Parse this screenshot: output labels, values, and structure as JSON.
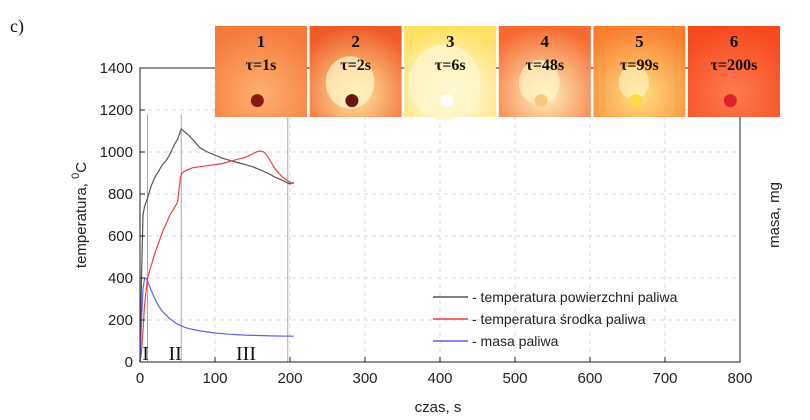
{
  "panel_label": "c)",
  "chart_data": {
    "type": "line",
    "xlabel": "czas, s",
    "ylabel_main": "temperatura, ",
    "ylabel_sup": "0",
    "ylabel_unit": "C",
    "y2label": "masa, mg",
    "xlim": [
      0,
      800
    ],
    "ylim": [
      0,
      1400
    ],
    "xticks": [
      0,
      100,
      200,
      300,
      400,
      500,
      600,
      700,
      800
    ],
    "yticks": [
      0,
      200,
      400,
      600,
      800,
      1000,
      1200,
      1400
    ],
    "grid": true,
    "legend_position": "bottom-right",
    "series": [
      {
        "name": "- temperatura powierzchni paliwa",
        "color": "#555555",
        "x": [
          0,
          2,
          4,
          6,
          10,
          15,
          20,
          25,
          30,
          35,
          40,
          45,
          50,
          52,
          55,
          58,
          60,
          65,
          70,
          75,
          80,
          90,
          100,
          110,
          120,
          130,
          140,
          150,
          160,
          170,
          180,
          190,
          195,
          200,
          205
        ],
        "y": [
          0,
          400,
          700,
          740,
          780,
          840,
          880,
          910,
          940,
          960,
          990,
          1030,
          1060,
          1080,
          1110,
          1100,
          1095,
          1080,
          1060,
          1040,
          1020,
          1000,
          985,
          970,
          960,
          950,
          940,
          930,
          915,
          900,
          880,
          865,
          855,
          848,
          855
        ]
      },
      {
        "name": "- temperatura środka paliwa",
        "color": "#f04040",
        "x": [
          0,
          2,
          4,
          6,
          10,
          15,
          20,
          25,
          30,
          35,
          40,
          45,
          50,
          52,
          54,
          56,
          60,
          70,
          80,
          90,
          100,
          110,
          120,
          130,
          140,
          150,
          155,
          160,
          165,
          170,
          175,
          180,
          190,
          200,
          205
        ],
        "y": [
          0,
          50,
          150,
          270,
          400,
          460,
          520,
          570,
          620,
          660,
          700,
          730,
          760,
          820,
          880,
          900,
          910,
          925,
          930,
          935,
          940,
          945,
          955,
          965,
          975,
          990,
          1000,
          1005,
          1000,
          980,
          950,
          920,
          880,
          855,
          850
        ]
      },
      {
        "name": "- masa paliwa",
        "color": "#6060ee",
        "x": [
          0,
          2,
          4,
          6,
          8,
          10,
          15,
          20,
          25,
          30,
          40,
          50,
          60,
          70,
          80,
          100,
          120,
          140,
          160,
          180,
          200,
          205
        ],
        "y": [
          0,
          200,
          350,
          395,
          400,
          385,
          340,
          300,
          265,
          240,
          205,
          180,
          165,
          155,
          148,
          138,
          132,
          128,
          126,
          124,
          123,
          123
        ]
      }
    ],
    "stage_lines_x": [
      10,
      55,
      197
    ],
    "stage_labels": [
      {
        "text": "I",
        "x": 3
      },
      {
        "text": "II",
        "x": 38
      },
      {
        "text": "III",
        "x": 128
      }
    ],
    "photos": [
      {
        "num": "1",
        "time": "τ=1s",
        "bg": "#f47a3c",
        "center": "#ffb070",
        "blob": "#8a1a10",
        "glow": 0.0
      },
      {
        "num": "2",
        "time": "τ=2s",
        "bg": "#f05a28",
        "center": "#ffe7a0",
        "blob": "#6a1510",
        "glow": 0.55
      },
      {
        "num": "3",
        "time": "τ=6s",
        "bg": "#ffe060",
        "center": "#ffffff",
        "blob": "#ffffff",
        "glow": 1.0
      },
      {
        "num": "4",
        "time": "τ=48s",
        "bg": "#f56a30",
        "center": "#fff2c0",
        "blob": "#f8c880",
        "glow": 0.4
      },
      {
        "num": "5",
        "time": "τ=99s",
        "bg": "#f97e30",
        "center": "#ffe080",
        "blob": "#ffd84a",
        "glow": 0.2
      },
      {
        "num": "6",
        "time": "τ=200s",
        "bg": "#f54a1e",
        "center": "#ff7a50",
        "blob": "#e0202a",
        "glow": 0.0
      }
    ]
  }
}
